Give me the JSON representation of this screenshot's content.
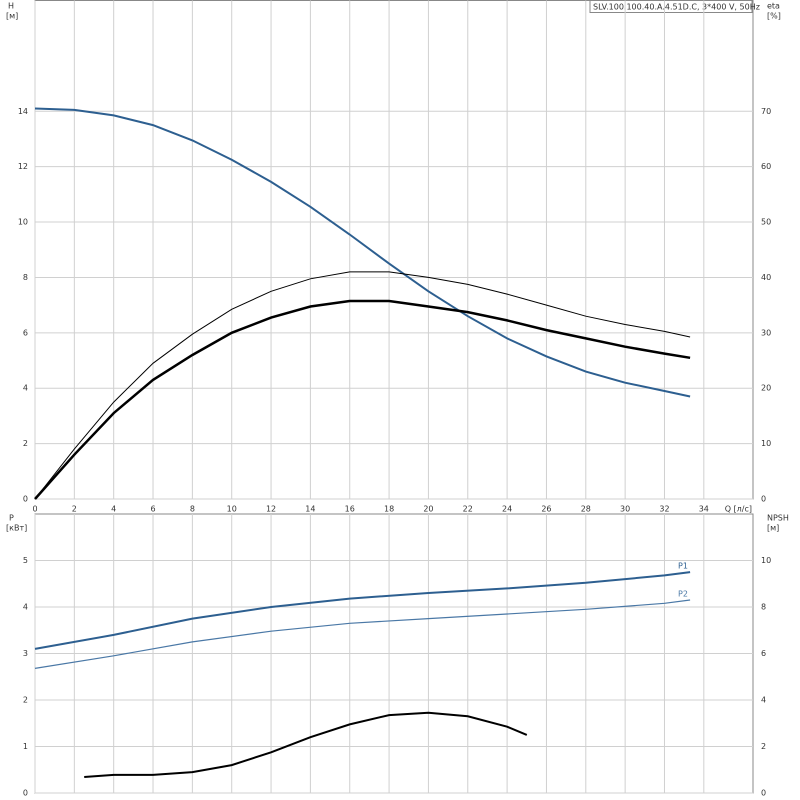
{
  "chart_data": [
    {
      "type": "line",
      "title": "SLV.100.100.40.A.4.51D.C, 3*400 V, 50Hz",
      "y_label": "H",
      "y_unit": "[м]",
      "y2_label": "eta",
      "y2_unit": "[%]",
      "x_label": "Q [л/с]",
      "xlim": [
        0,
        36.5
      ],
      "xticks": [
        0,
        2,
        4,
        6,
        8,
        10,
        12,
        14,
        16,
        18,
        20,
        22,
        24,
        26,
        28,
        30,
        32,
        34
      ],
      "ylim": [
        0,
        18
      ],
      "yticks": [
        0,
        2,
        4,
        6,
        8,
        10,
        12,
        14
      ],
      "y2lim": [
        0,
        90
      ],
      "y2ticks": [
        0,
        10,
        20,
        30,
        40,
        50,
        60,
        70
      ],
      "grid": true,
      "series": [
        {
          "color": "#2d5f90",
          "width": 2,
          "x": [
            0,
            2,
            4,
            6,
            8,
            10,
            12,
            14,
            16,
            18,
            20,
            22,
            24,
            26,
            28,
            30,
            32,
            33.3
          ],
          "values": [
            14.1,
            14.05,
            13.85,
            13.5,
            12.95,
            12.25,
            11.45,
            10.55,
            9.55,
            8.5,
            7.5,
            6.6,
            5.8,
            5.15,
            4.6,
            4.2,
            3.9,
            3.7
          ]
        },
        {
          "color": "#000000",
          "width": 2.5,
          "axis": "y2",
          "x": [
            0,
            2,
            4,
            6,
            8,
            10,
            12,
            14,
            16,
            18,
            20,
            22,
            24,
            26,
            28,
            30,
            32,
            33.3
          ],
          "values": [
            0,
            8,
            15.5,
            21.5,
            26,
            30,
            32.75,
            34.75,
            35.75,
            35.75,
            34.75,
            33.75,
            32.25,
            30.5,
            29,
            27.5,
            26.25,
            25.5
          ]
        },
        {
          "color": "#000000",
          "width": 1,
          "axis": "y2",
          "x": [
            0,
            2,
            4,
            6,
            8,
            10,
            12,
            14,
            16,
            18,
            20,
            22,
            24,
            26,
            28,
            30,
            32,
            33.3
          ],
          "values": [
            0,
            9,
            17.5,
            24.5,
            29.75,
            34.25,
            37.5,
            39.75,
            41,
            41,
            40,
            38.75,
            37,
            35,
            33,
            31.5,
            30.25,
            29.25
          ]
        }
      ]
    },
    {
      "type": "line",
      "y_label": "P",
      "y_unit": "[кВт]",
      "y2_label": "NPSH",
      "y2_unit": "[м]",
      "xlim": [
        0,
        36.5
      ],
      "ylim": [
        0,
        6
      ],
      "yticks": [
        0,
        1,
        2,
        3,
        4,
        5
      ],
      "y2lim": [
        0,
        12
      ],
      "y2ticks": [
        0,
        2,
        4,
        6,
        8,
        10
      ],
      "grid": true,
      "series": [
        {
          "name": "P1",
          "color": "#2d5f90",
          "width": 2,
          "x": [
            0,
            4,
            8,
            12,
            16,
            20,
            24,
            28,
            32,
            33.3
          ],
          "values": [
            3.1,
            3.4,
            3.75,
            4.0,
            4.18,
            4.3,
            4.4,
            4.52,
            4.68,
            4.75
          ]
        },
        {
          "name": "P2",
          "color": "#4a78a6",
          "width": 1.2,
          "x": [
            0,
            4,
            8,
            12,
            16,
            20,
            24,
            28,
            32,
            33.3
          ],
          "values": [
            2.68,
            2.95,
            3.25,
            3.48,
            3.65,
            3.75,
            3.85,
            3.95,
            4.08,
            4.15
          ]
        },
        {
          "color": "#000000",
          "width": 2,
          "axis": "y2",
          "x": [
            2.5,
            4,
            6,
            8,
            10,
            12,
            14,
            16,
            18,
            20,
            22,
            24,
            25
          ],
          "values": [
            0.69,
            0.78,
            0.78,
            0.9,
            1.2,
            1.75,
            2.4,
            2.95,
            3.35,
            3.45,
            3.3,
            2.85,
            2.5
          ]
        }
      ]
    }
  ]
}
